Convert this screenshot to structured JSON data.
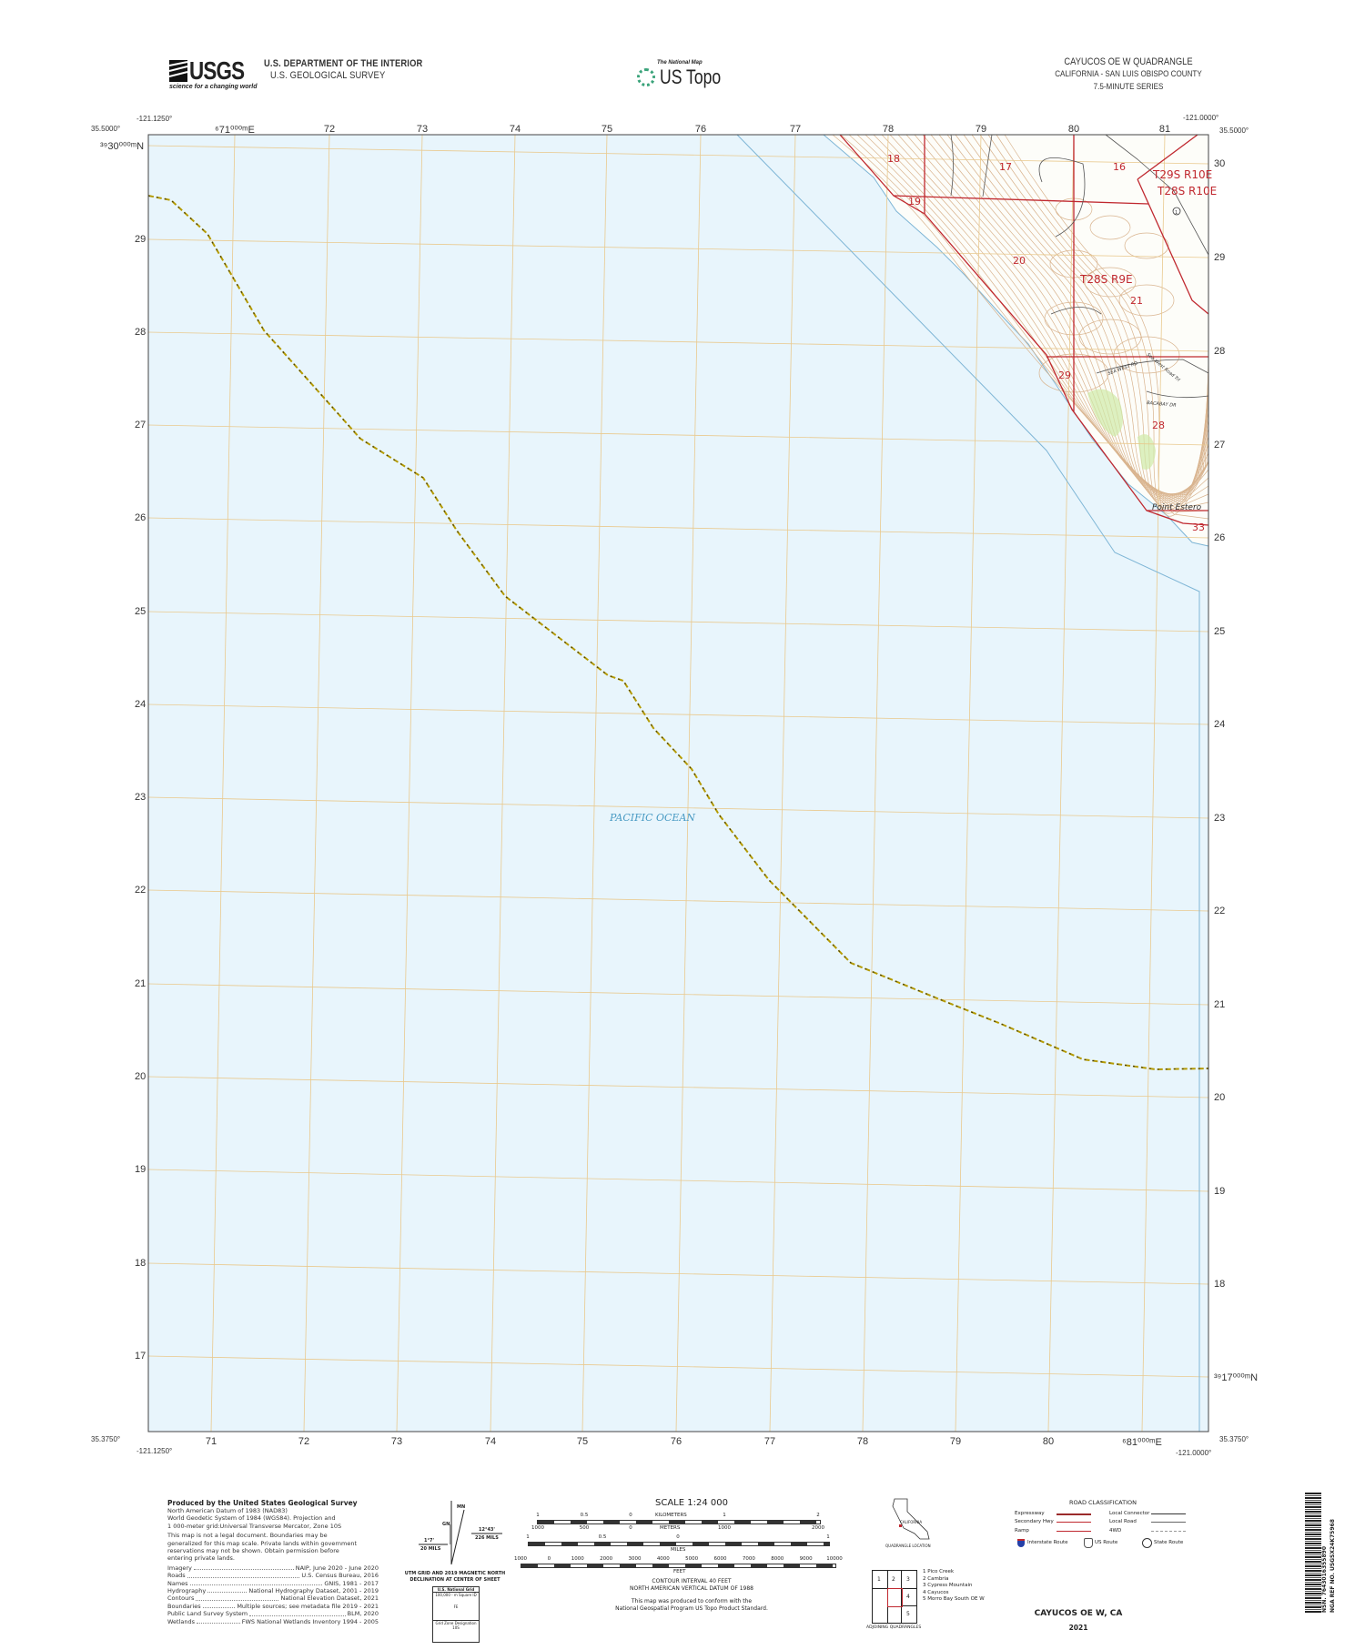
{
  "header": {
    "agency_logo": "USGS",
    "agency_tagline": "science for a changing world",
    "department": "U.S. DEPARTMENT OF THE INTERIOR",
    "survey": "U.S. GEOLOGICAL SURVEY",
    "product_tagline": "The National Map",
    "product_name": "US Topo",
    "quad_title": "CAYUCOS OE W QUADRANGLE",
    "quad_state_county": "CALIFORNIA - SAN LUIS OBISPO COUNTY",
    "quad_series": "7.5-MINUTE SERIES"
  },
  "map": {
    "corners": {
      "top_left_lat": "35.5000°",
      "top_left_lon": "-121.1250°",
      "top_right_lat": "35.5000°",
      "top_right_lon": "-121.0000°",
      "bottom_left_lat": "35.3750°",
      "bottom_left_lon": "-121.1250°",
      "bottom_right_lat": "35.3750°",
      "bottom_right_lon": "-121.0000°"
    },
    "top_eastings": [
      "⁶71⁰⁰⁰ᵐE",
      "72",
      "73",
      "74",
      "75",
      "76",
      "77",
      "78",
      "79",
      "80",
      "81"
    ],
    "bottom_eastings": [
      "71",
      "72",
      "73",
      "74",
      "75",
      "76",
      "77",
      "78",
      "79",
      "80",
      "⁶81⁰⁰⁰ᵐE"
    ],
    "left_northings": [
      "³⁹30⁰⁰⁰ᵐN",
      "29",
      "28",
      "27",
      "26",
      "25",
      "24",
      "23",
      "22",
      "21",
      "20",
      "19",
      "18",
      "17"
    ],
    "right_northings": [
      "30",
      "29",
      "28",
      "27",
      "26",
      "25",
      "24",
      "23",
      "22",
      "21",
      "20",
      "19",
      "18",
      "³⁹17⁰⁰⁰ᵐN"
    ],
    "water_label": "PACIFIC OCEAN",
    "place_label": "Point Estero",
    "township_labels": [
      "T29S R10E",
      "T28S R10E",
      "T28S R9E"
    ],
    "section_numbers": [
      "18",
      "17",
      "16",
      "19",
      "20",
      "21",
      "29",
      "28",
      "33"
    ],
    "road_labels": [
      "SEA WEST RD",
      "Sea West Road Trl",
      "BACABAY DR"
    ],
    "route_shield": "1",
    "colors": {
      "water": "#e8f5fc",
      "land": "#fdfdf9",
      "contour": "#d9b48f",
      "boundary": "#c0282f",
      "grid": "#e9c98e",
      "road": "#555555",
      "maritime": "#7fb6d6"
    }
  },
  "footer": {
    "producer": "Produced by the United States Geological Survey",
    "datum_lines": [
      "North American Datum of 1983 (NAD83)",
      "World Geodetic System of 1984 (WGS84).  Projection and",
      "1 000-meter grid:Universal Transverse Mercator, Zone 10S"
    ],
    "disclaimer_lines": [
      "This map is not a legal document. Boundaries may be",
      "generalized for this map scale. Private lands within government",
      "reservations may not be shown. Obtain permission before",
      "entering private lands."
    ],
    "sources": [
      {
        "name": "Imagery",
        "source": "NAIP, June 2020 - June 2020"
      },
      {
        "name": "Roads",
        "source": "U.S. Census Bureau, 2016"
      },
      {
        "name": "Names",
        "source": "GNIS, 1981 - 2017"
      },
      {
        "name": "Hydrography",
        "source": "National Hydrography Dataset, 2001 - 2019"
      },
      {
        "name": "Contours",
        "source": "National Elevation Dataset, 2021"
      },
      {
        "name": "Boundaries",
        "source": "Multiple sources; see metadata file 2019 - 2021"
      },
      {
        "name": "Public Land Survey System",
        "source": "BLM, 2020"
      },
      {
        "name": "Wetlands",
        "source": "FWS National Wetlands Inventory 1994 - 2005"
      }
    ],
    "declination": {
      "mn_label": "MN",
      "gn_label": "GN",
      "grid_angle": "1°7'",
      "grid_mils": "20 MILS",
      "mag_angle": "12°43'",
      "mag_mils": "226 MILS",
      "caption_1": "UTM GRID AND 2019 MAGNETIC NORTH",
      "caption_2": "DECLINATION AT CENTER OF SHEET"
    },
    "national_grid": {
      "title": "U.S. National Grid",
      "subtitle": "100,000 - m Square ID",
      "square_id": "FE",
      "zone_label": "Grid Zone Designation",
      "zone": "10S"
    },
    "scale": {
      "title": "SCALE 1:24 000",
      "km_ticks": [
        "1",
        "0.5",
        "0",
        "1",
        "2"
      ],
      "km_label": "KILOMETERS",
      "m_ticks": [
        "1000",
        "500",
        "0",
        "1000",
        "2000"
      ],
      "m_label": "METERS",
      "mi_ticks": [
        "1",
        "0.5",
        "0",
        "1"
      ],
      "mi_label": "MILES",
      "ft_ticks": [
        "1000",
        "0",
        "1000",
        "2000",
        "3000",
        "4000",
        "5000",
        "6000",
        "7000",
        "8000",
        "9000",
        "10000"
      ],
      "ft_label": "FEET"
    },
    "contour_interval": "CONTOUR INTERVAL 40 FEET",
    "vertical_datum": "NORTH AMERICAN VERTICAL DATUM OF 1988",
    "standard_1": "This map was produced to conform with the",
    "standard_2": "National Geospatial Program US Topo Product Standard.",
    "location_state": "CALIFORNIA",
    "location_caption": "QUADRANGLE LOCATION",
    "adjoining_caption": "ADJOINING QUADRANGLES",
    "adjoining": [
      "1 Pico Creek",
      "2 Cambria",
      "3 Cypress Mountain",
      "4 Cayucos",
      "5 Morro Bay South OE W"
    ],
    "adjoining_cells": [
      "1",
      "2",
      "3",
      "4",
      "5"
    ],
    "road_classification": {
      "title": "ROAD CLASSIFICATION",
      "left": [
        "Expressway",
        "Secondary Hwy",
        "Ramp"
      ],
      "right": [
        "Local Connector",
        "Local Road",
        "4WD"
      ],
      "routes": [
        "Interstate Route",
        "US Route",
        "State Route"
      ]
    },
    "bottom_title": "CAYUCOS OE W,  CA",
    "year": "2021",
    "nsn": "NSN. 7643016355890",
    "nga_ref": "NGA REF NO. USGSX24K75968"
  }
}
